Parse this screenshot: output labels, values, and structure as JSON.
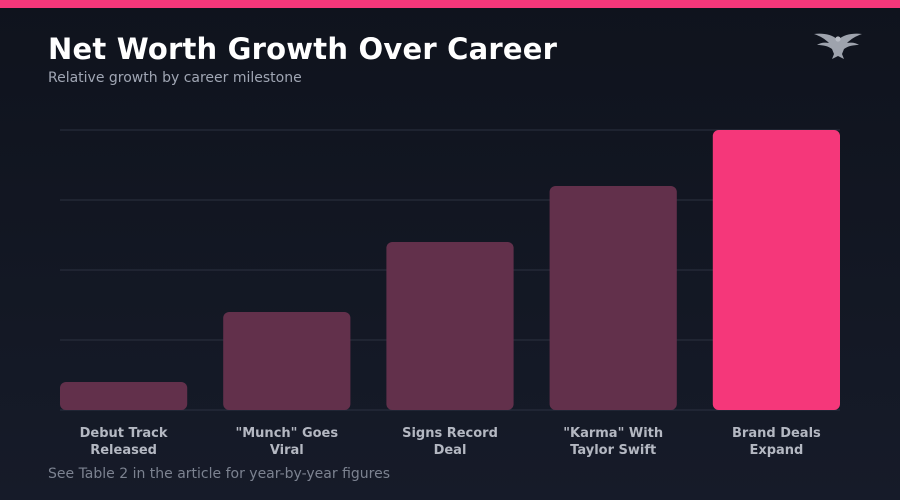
{
  "header": {
    "title": "Net Worth Growth Over Career",
    "subtitle": "Relative growth by career milestone"
  },
  "footer": {
    "note": "See Table 2 in the article for year-by-year figures"
  },
  "logo": {
    "icon": "eagle-icon"
  },
  "colors": {
    "accent": "#f5377a",
    "bar": "#62304b",
    "grid": "#2c3140",
    "tick_label": "#b4b8c2"
  },
  "chart_data": {
    "type": "bar",
    "categories": [
      [
        "Debut Track",
        "Released"
      ],
      [
        "\"Munch\" Goes",
        "Viral"
      ],
      [
        "Signs Record",
        "Deal"
      ],
      [
        "\"Karma\" With",
        "Taylor Swift"
      ],
      [
        "Brand Deals",
        "Expand"
      ]
    ],
    "values": [
      10,
      35,
      60,
      80,
      100
    ],
    "highlight_index": 4,
    "ylim": [
      0,
      100
    ],
    "grid": true,
    "yticks": [
      0,
      25,
      50,
      75,
      100
    ],
    "xlabel": "",
    "ylabel": ""
  }
}
